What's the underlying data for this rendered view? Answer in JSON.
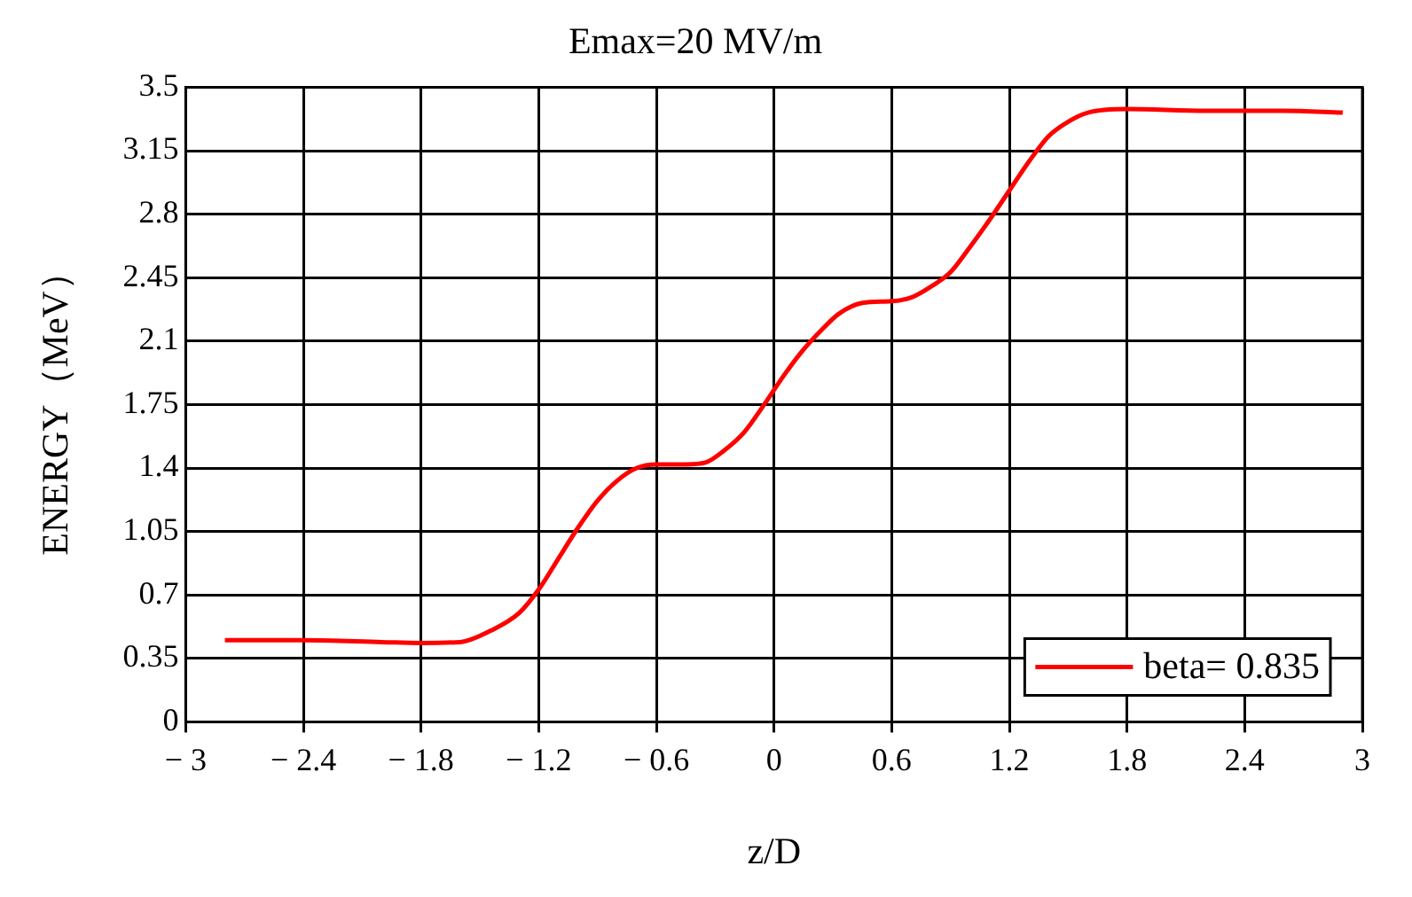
{
  "chart_data": {
    "type": "line",
    "title": "Emax=20 MV/m",
    "xlabel": "z/D",
    "ylabel": "ENERGY（MeV）",
    "xlim": [
      -3,
      3
    ],
    "xticks": [
      {
        "value": -3,
        "label": "− 3"
      },
      {
        "value": -2.4,
        "label": "− 2.4"
      },
      {
        "value": -1.8,
        "label": "− 1.8"
      },
      {
        "value": -1.2,
        "label": "− 1.2"
      },
      {
        "value": -0.6,
        "label": "− 0.6"
      },
      0,
      0.6,
      1.2,
      1.8,
      2.4,
      3
    ],
    "ylim": [
      0,
      3.5
    ],
    "yticks": [
      0,
      0.35,
      0.7,
      1.05,
      1.4,
      1.75,
      2.1,
      2.45,
      2.8,
      3.15,
      3.5
    ],
    "grid": true,
    "legend": "bottom right",
    "marker": "none",
    "line_style": "solid",
    "series": [
      {
        "name": "beta= 0.835",
        "color": "#ff0000",
        "x": [
          -2.8,
          -2.4,
          -2.0,
          -1.8,
          -1.6,
          -1.45,
          -1.3,
          -1.2,
          -1.1,
          -1.0,
          -0.9,
          -0.8,
          -0.7,
          -0.6,
          -0.45,
          -0.35,
          -0.25,
          -0.15,
          -0.05,
          0.05,
          0.14,
          0.25,
          0.33,
          0.45,
          0.6,
          0.7,
          0.8,
          0.9,
          1.0,
          1.1,
          1.2,
          1.3,
          1.4,
          1.5,
          1.6,
          1.8,
          2.2,
          2.6,
          2.9
        ],
        "values": [
          0.45,
          0.45,
          0.44,
          0.435,
          0.44,
          0.5,
          0.6,
          0.73,
          0.9,
          1.07,
          1.22,
          1.33,
          1.4,
          1.42,
          1.42,
          1.43,
          1.5,
          1.6,
          1.75,
          1.91,
          2.04,
          2.17,
          2.25,
          2.31,
          2.32,
          2.34,
          2.4,
          2.48,
          2.62,
          2.77,
          2.93,
          3.09,
          3.23,
          3.31,
          3.36,
          3.38,
          3.37,
          3.37,
          3.36
        ]
      }
    ]
  }
}
